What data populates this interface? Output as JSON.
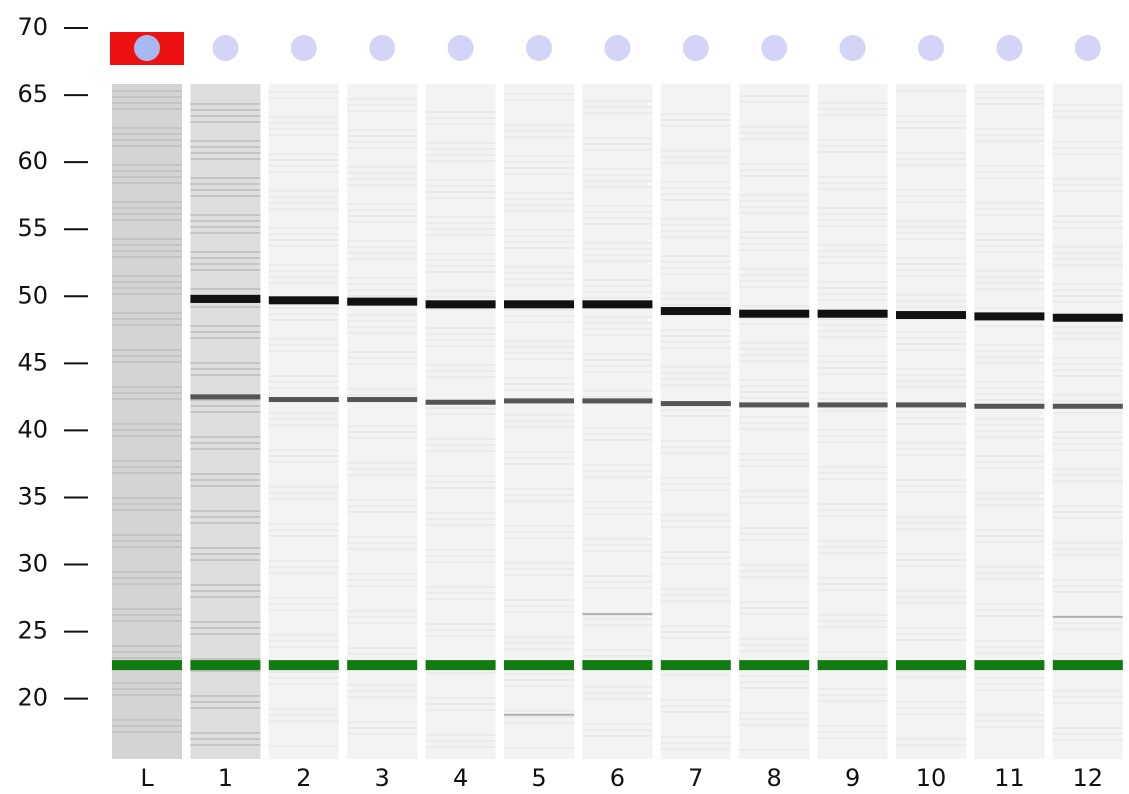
{
  "chart_data": {
    "type": "gel",
    "categories": [
      "L",
      "1",
      "2",
      "3",
      "4",
      "5",
      "6",
      "7",
      "8",
      "9",
      "10",
      "11",
      "12"
    ],
    "ylim": [
      15.5,
      70.3
    ],
    "yticks": [
      20,
      25,
      30,
      35,
      40,
      45,
      50,
      55,
      60,
      65,
      70
    ],
    "series": [
      {
        "color": "#111111",
        "values": [
          null,
          49.8,
          49.7,
          49.6,
          49.4,
          49.4,
          49.4,
          48.9,
          48.7,
          48.7,
          48.6,
          48.5,
          48.4
        ]
      },
      {
        "color": "#555555",
        "values": [
          null,
          42.5,
          42.3,
          42.3,
          42.1,
          42.2,
          42.2,
          42.0,
          41.9,
          41.9,
          41.9,
          41.8,
          41.8
        ]
      },
      {
        "color": "#117a11",
        "values": [
          22.5,
          22.5,
          22.5,
          22.5,
          22.5,
          22.5,
          22.5,
          22.5,
          22.5,
          22.5,
          22.5,
          22.5,
          22.5
        ]
      },
      {
        "color": "#b0b0b0",
        "values": [
          null,
          null,
          null,
          null,
          null,
          18.8,
          26.3,
          null,
          null,
          null,
          null,
          null,
          26.1
        ]
      }
    ]
  }
}
